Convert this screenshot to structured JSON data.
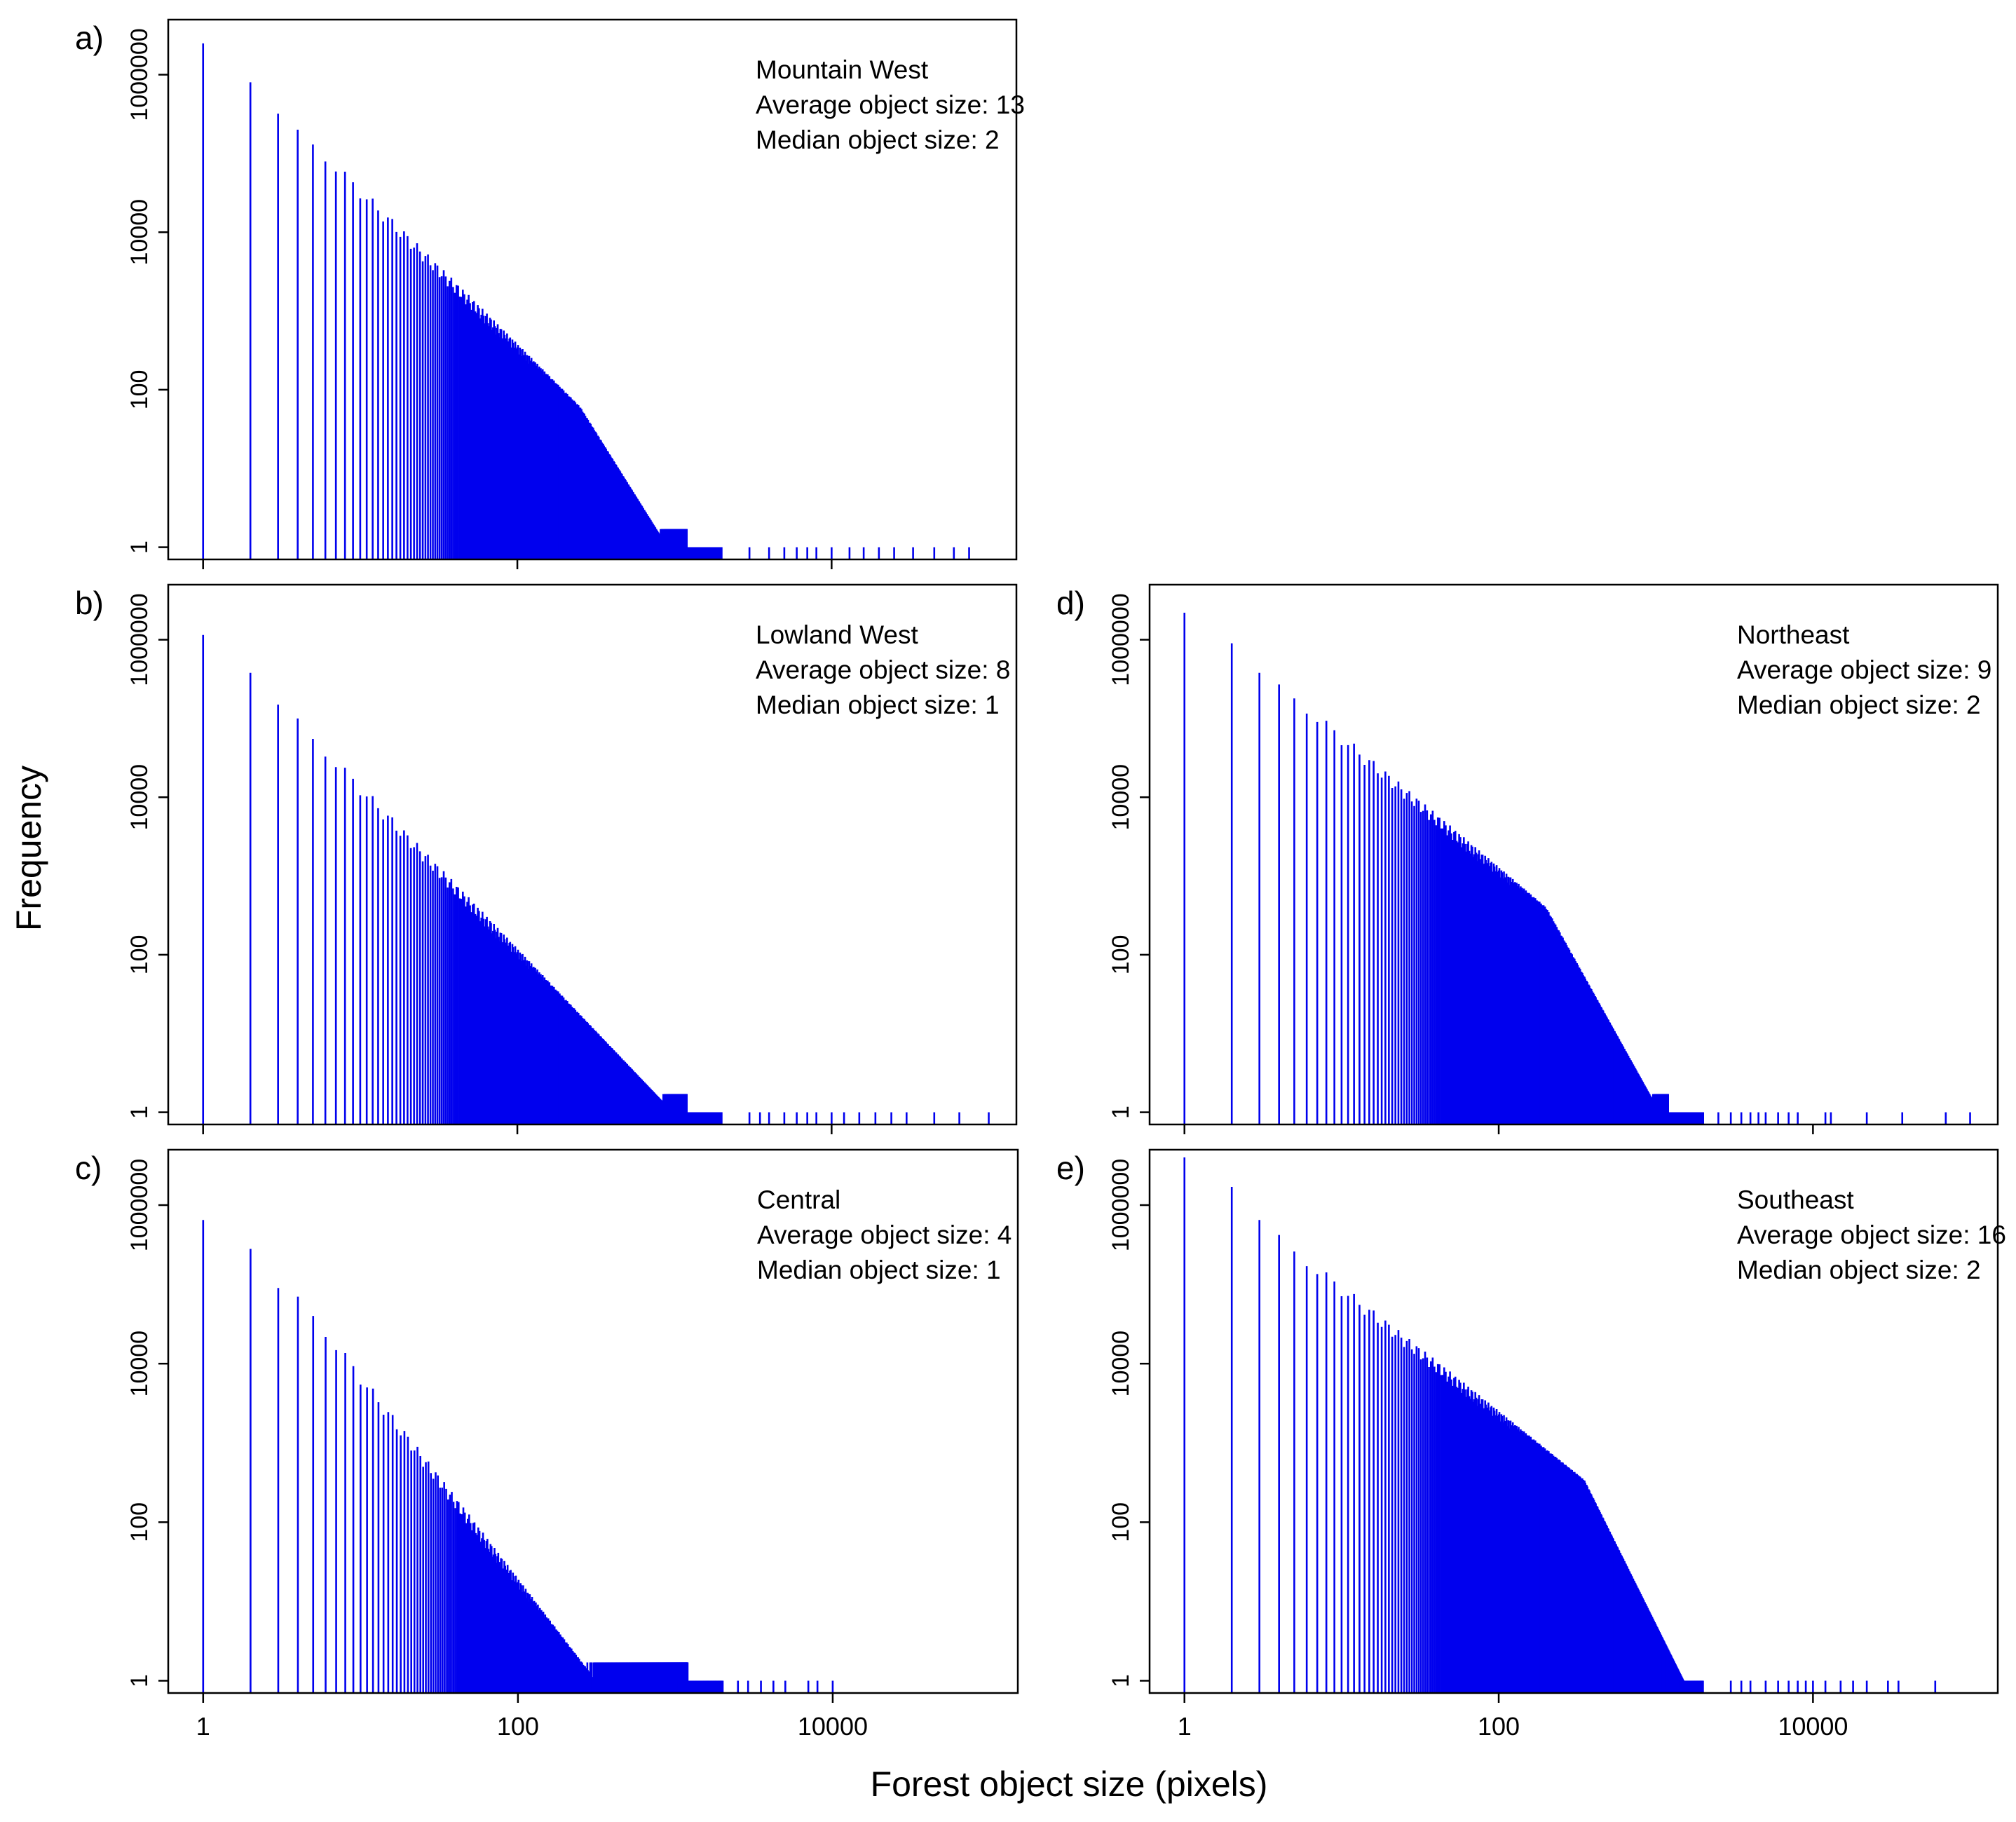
{
  "figure": {
    "xlabel": "Forest object size (pixels)",
    "ylabel": "Frequency",
    "bar_color": "#0000ee"
  },
  "chart_data": [
    {
      "type": "bar",
      "panel_label": "a)",
      "title": "Mountain West",
      "annotations": [
        "Average object size: 13",
        "Median object size: 2"
      ],
      "xscale": "log10",
      "yscale": "log10",
      "xlim": [
        0.6,
        150000
      ],
      "ylim": [
        0.7,
        5000000
      ],
      "xticks": [
        1,
        100,
        10000
      ],
      "xtick_labels": [],
      "yticks": [
        1,
        100,
        10000,
        1000000
      ],
      "ytick_labels": [
        "1",
        "100",
        "10000",
        "1000000"
      ],
      "first_sizes": [
        1,
        2,
        3,
        4,
        5
      ],
      "first_freqs": [
        2500000,
        800000,
        320000,
        200000,
        130000
      ],
      "slope": -2.0,
      "tail_start": 250,
      "tail_slope": -3.2,
      "tail_singletons": [
        3000,
        4000,
        5000,
        6000,
        7000,
        8000,
        10000,
        13000,
        16000,
        20000,
        25000,
        33000,
        45000,
        60000,
        75000
      ]
    },
    {
      "type": "bar",
      "panel_label": "b)",
      "title": "Lowland West",
      "annotations": [
        "Average object size: 8",
        "Median object size: 1"
      ],
      "xscale": "log10",
      "yscale": "log10",
      "xlim": [
        0.6,
        150000
      ],
      "ylim": [
        0.7,
        5000000
      ],
      "xticks": [
        1,
        100,
        10000
      ],
      "xtick_labels": [],
      "yticks": [
        1,
        100,
        10000,
        1000000
      ],
      "ytick_labels": [
        "1",
        "100",
        "10000",
        "1000000"
      ],
      "first_sizes": [
        1,
        2,
        3,
        4,
        5
      ],
      "first_freqs": [
        1150000,
        380000,
        150000,
        100000,
        55000
      ],
      "slope": -2.1,
      "tail_start": 1000000,
      "tail_slope": -2.1,
      "tail_singletons": [
        3000,
        3500,
        4000,
        5000,
        6000,
        7000,
        8000,
        10000,
        12000,
        15000,
        19000,
        24000,
        30000,
        45000,
        65000,
        100000
      ]
    },
    {
      "type": "bar",
      "panel_label": "c)",
      "title": "Central",
      "annotations": [
        "Average object size: 4",
        "Median object size: 1"
      ],
      "xscale": "log10",
      "yscale": "log10",
      "xlim": [
        0.6,
        150000
      ],
      "ylim": [
        0.7,
        5000000
      ],
      "xticks": [
        1,
        100,
        10000
      ],
      "xtick_labels": [
        "1",
        "100",
        "10000"
      ],
      "yticks": [
        1,
        100,
        10000,
        1000000
      ],
      "ytick_labels": [
        "1",
        "100",
        "10000",
        "1000000"
      ],
      "first_sizes": [
        1,
        2,
        3,
        4,
        5
      ],
      "first_freqs": [
        650000,
        280000,
        90000,
        70000,
        40000
      ],
      "slope": -2.6,
      "tail_start": 1000000,
      "tail_slope": -2.6,
      "tail_singletons": [
        1600,
        1800,
        2000,
        2500,
        2900,
        3500,
        4200,
        5000,
        7000,
        8000,
        10000
      ]
    },
    {
      "type": "bar",
      "panel_label": "d)",
      "title": "Northeast",
      "annotations": [
        "Average object size: 9",
        "Median object size: 2"
      ],
      "xscale": "log10",
      "yscale": "log10",
      "xlim": [
        0.6,
        150000
      ],
      "ylim": [
        0.7,
        5000000
      ],
      "xticks": [
        1,
        100,
        10000
      ],
      "xtick_labels": [],
      "yticks": [
        1,
        100,
        10000,
        1000000
      ],
      "ytick_labels": [
        "1",
        "100",
        "10000",
        "1000000"
      ],
      "first_sizes": [
        1,
        2,
        3,
        4,
        5
      ],
      "first_freqs": [
        2200000,
        900000,
        380000,
        270000,
        180000
      ],
      "slope": -1.7,
      "tail_start": 200,
      "tail_slope": -3.6,
      "tail_singletons": [
        2000,
        2500,
        3000,
        3500,
        4000,
        4500,
        5000,
        6000,
        7000,
        8000,
        12000,
        13000,
        22000,
        37000,
        70000,
        100000
      ]
    },
    {
      "type": "bar",
      "panel_label": "e)",
      "title": "Southeast",
      "annotations": [
        "Average object size: 16",
        "Median object size: 2"
      ],
      "xscale": "log10",
      "yscale": "log10",
      "xlim": [
        0.6,
        150000
      ],
      "ylim": [
        0.7,
        5000000
      ],
      "xticks": [
        1,
        100,
        10000
      ],
      "xtick_labels": [
        "1",
        "100",
        "10000"
      ],
      "yticks": [
        1,
        100,
        10000,
        1000000
      ],
      "ytick_labels": [
        "1",
        "100",
        "10000",
        "1000000"
      ],
      "first_sizes": [
        1,
        2,
        3,
        4,
        5
      ],
      "first_freqs": [
        4000000,
        1700000,
        650000,
        420000,
        260000
      ],
      "slope": -1.6,
      "tail_start": 350,
      "tail_slope": -4.0,
      "tail_singletons": [
        3000,
        3500,
        4000,
        5000,
        6000,
        7000,
        8000,
        9000,
        10000,
        12000,
        15000,
        18000,
        22000,
        30000,
        35000,
        60000
      ]
    }
  ]
}
